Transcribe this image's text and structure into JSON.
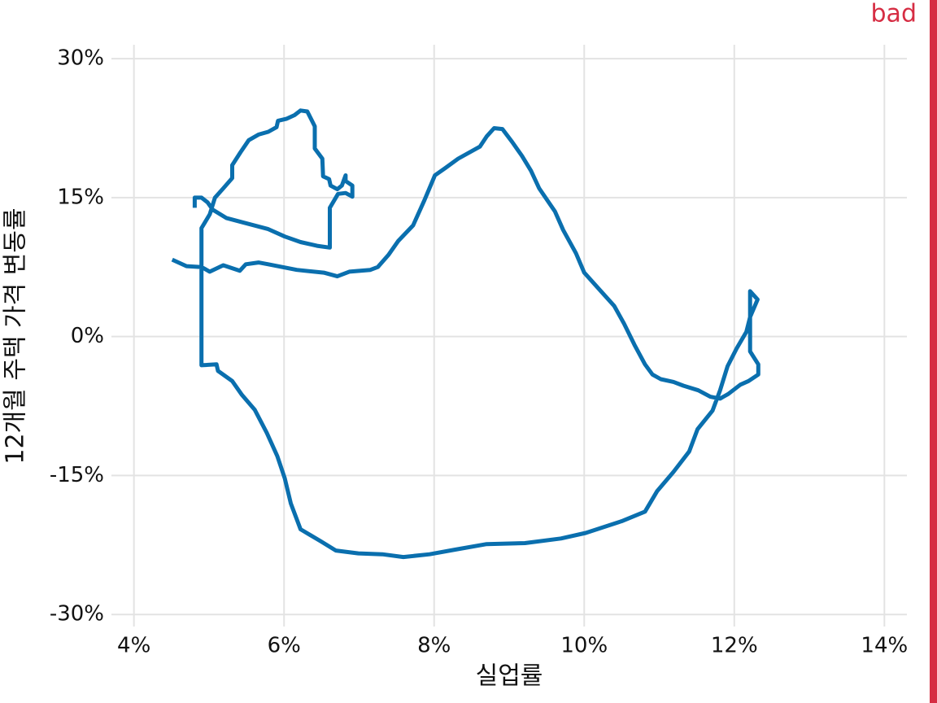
{
  "chart_data": {
    "type": "path",
    "x_label": "실업률",
    "y_label": "12개월 주택 가격 변동률",
    "annotation": "bad",
    "annotation_color": "#d62d43",
    "color": "#0a6fae",
    "grid": true,
    "xlim": [
      3.7,
      14.3
    ],
    "ylim": [
      -31.3,
      31.5
    ],
    "xticks": [
      {
        "value": 4,
        "label": "4%"
      },
      {
        "value": 6,
        "label": "6%"
      },
      {
        "value": 8,
        "label": "8%"
      },
      {
        "value": 10,
        "label": "10%"
      },
      {
        "value": 12,
        "label": "12%"
      },
      {
        "value": 14,
        "label": "14%"
      }
    ],
    "yticks": [
      {
        "value": 30,
        "label": "30%"
      },
      {
        "value": 15,
        "label": "15%"
      },
      {
        "value": 0,
        "label": "0%"
      },
      {
        "value": -15,
        "label": "-15%"
      },
      {
        "value": -30,
        "label": "-30%"
      }
    ],
    "x": [
      4.51,
      4.7,
      4.9,
      5.01,
      5.19,
      5.41,
      5.49,
      5.66,
      5.79,
      6.17,
      6.53,
      6.71,
      6.87,
      7.15,
      7.25,
      7.39,
      7.52,
      7.72,
      7.87,
      8.01,
      8.15,
      8.32,
      8.61,
      8.7,
      8.8,
      8.91,
      9.04,
      9.17,
      9.29,
      9.4,
      9.61,
      9.72,
      9.89,
      10.0,
      10.2,
      10.4,
      10.53,
      10.67,
      10.81,
      10.91,
      11.02,
      11.19,
      11.32,
      11.52,
      11.68,
      11.81,
      11.92,
      12.08,
      12.19,
      12.32,
      12.32,
      12.21,
      12.21,
      12.21,
      12.31,
      12.21,
      12.16,
      12.03,
      11.91,
      11.81,
      11.71,
      11.51,
      11.4,
      11.19,
      10.97,
      10.81,
      10.51,
      10.02,
      9.69,
      9.21,
      8.7,
      8.28,
      7.94,
      7.59,
      7.31,
      6.99,
      6.69,
      6.49,
      6.22,
      6.09,
      6.01,
      5.91,
      5.77,
      5.61,
      5.44,
      5.31,
      5.12,
      5.1,
      4.9,
      4.9,
      5.01,
      5.08,
      5.19,
      5.31,
      5.31,
      5.42,
      5.53,
      5.66,
      5.79,
      5.9,
      5.92,
      6.03,
      6.14,
      6.22,
      6.31,
      6.41,
      6.41,
      6.51,
      6.52,
      6.6,
      6.62,
      6.71,
      6.77,
      6.82,
      6.82,
      6.91,
      6.91,
      6.82,
      6.72,
      6.61,
      6.61,
      6.44,
      6.22,
      6.01,
      5.79,
      5.46,
      5.23,
      5.05,
      4.98,
      4.9,
      4.81,
      4.81
    ],
    "y": [
      8.3,
      7.6,
      7.5,
      7.0,
      7.7,
      7.1,
      7.8,
      8.0,
      7.8,
      7.2,
      6.9,
      6.5,
      7.0,
      7.2,
      7.5,
      8.8,
      10.3,
      12.0,
      14.7,
      17.4,
      18.2,
      19.2,
      20.5,
      21.6,
      22.5,
      22.4,
      21.0,
      19.5,
      17.9,
      16.0,
      13.5,
      11.5,
      9.0,
      6.9,
      5.1,
      3.3,
      1.4,
      -0.9,
      -3.0,
      -4.1,
      -4.6,
      -4.9,
      -5.3,
      -5.8,
      -6.5,
      -6.7,
      -6.2,
      -5.2,
      -4.8,
      -4.1,
      -3.0,
      -1.6,
      3.7,
      4.9,
      4.0,
      2.1,
      0.5,
      -1.3,
      -3.2,
      -5.8,
      -8.0,
      -10.0,
      -12.4,
      -14.6,
      -16.7,
      -18.9,
      -19.9,
      -21.2,
      -21.8,
      -22.3,
      -22.4,
      -23.0,
      -23.5,
      -23.8,
      -23.5,
      -23.4,
      -23.1,
      -22.1,
      -20.8,
      -18.0,
      -15.3,
      -12.9,
      -10.4,
      -7.9,
      -6.3,
      -4.8,
      -3.7,
      -3.0,
      -3.1,
      11.7,
      13.2,
      15.0,
      16.0,
      17.1,
      18.5,
      19.9,
      21.2,
      21.8,
      22.1,
      22.6,
      23.3,
      23.5,
      23.9,
      24.4,
      24.3,
      22.7,
      20.3,
      19.2,
      17.3,
      17.0,
      16.3,
      15.9,
      16.3,
      17.4,
      16.8,
      16.3,
      15.1,
      15.5,
      15.4,
      13.9,
      9.6,
      9.8,
      10.2,
      10.8,
      11.6,
      12.3,
      12.8,
      13.7,
      14.5,
      15.0,
      15.0,
      13.9
    ]
  }
}
